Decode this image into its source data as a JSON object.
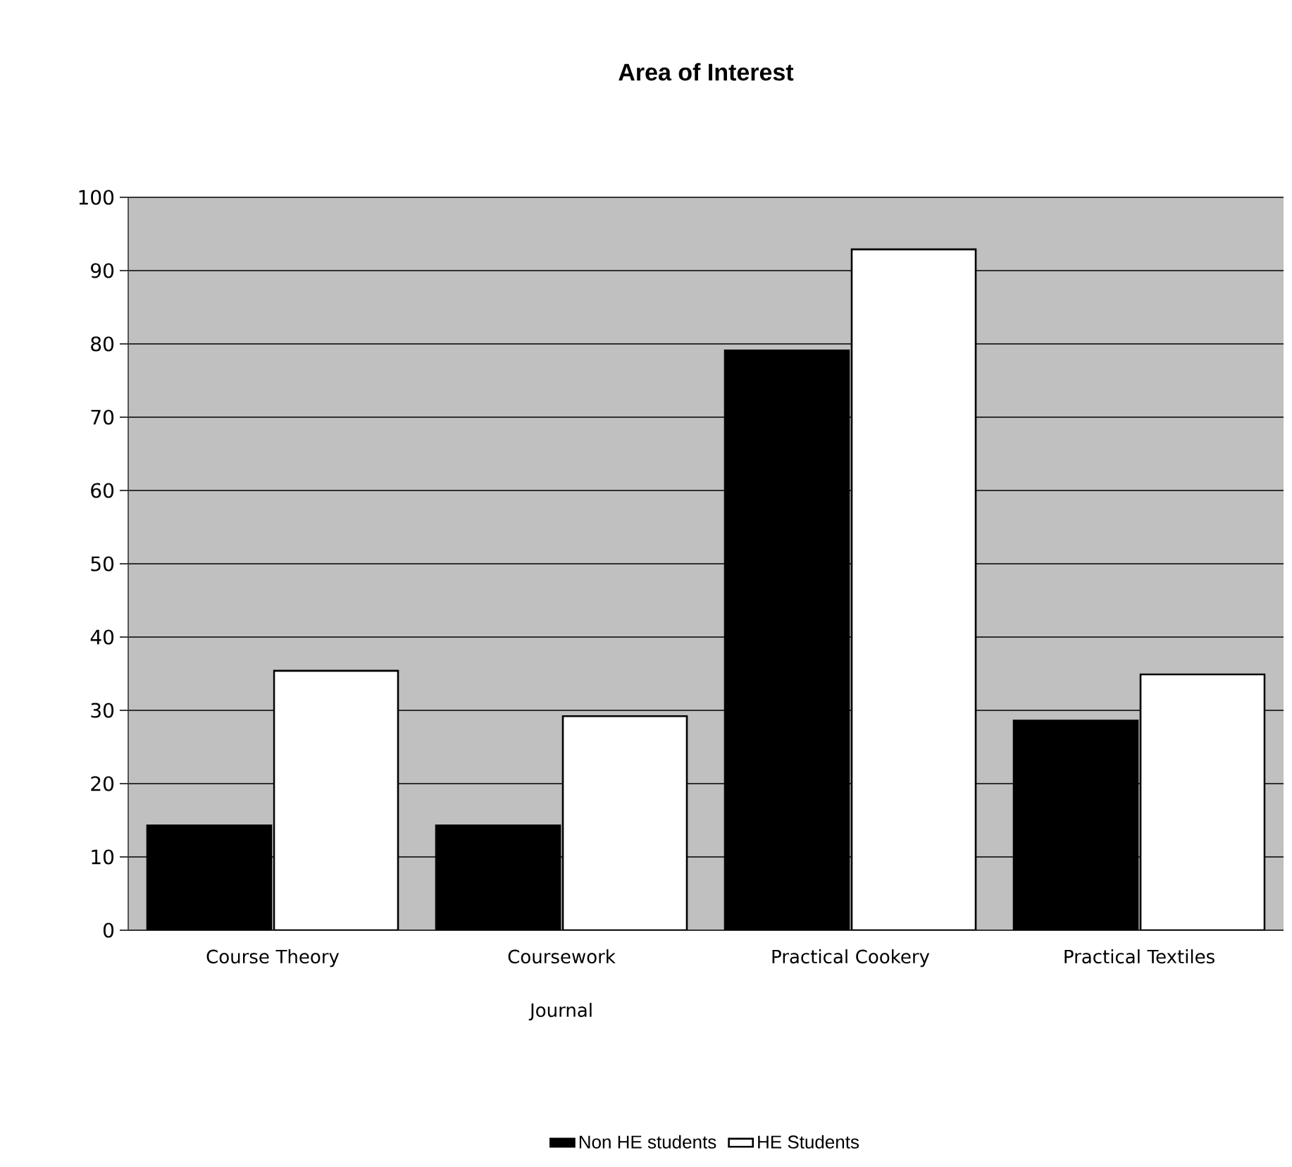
{
  "chart_data": {
    "type": "bar",
    "title": "Area of Interest",
    "categories": [
      "Course Theory",
      "Coursework Journal",
      "Practical Cookery",
      "Practical Textiles"
    ],
    "series": [
      {
        "name": "Non HE students",
        "color": "#000000",
        "values": [
          14.3,
          14.3,
          79.1,
          28.6
        ]
      },
      {
        "name": "HE Students",
        "color": "#ffffff",
        "values": [
          35.4,
          29.2,
          92.9,
          34.9
        ]
      }
    ],
    "ylim": [
      0,
      100
    ],
    "yticks": [
      0,
      10,
      20,
      30,
      40,
      50,
      60,
      70,
      80,
      90,
      100
    ],
    "grid": "y",
    "legend": "bottom"
  }
}
